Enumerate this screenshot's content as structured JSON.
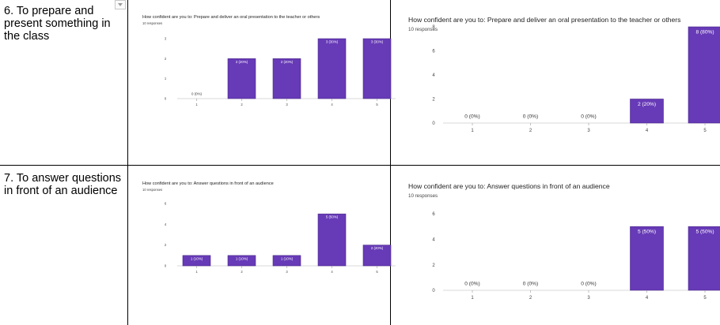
{
  "rows": [
    {
      "label": "6. To prepare and present something in the class",
      "charts": [
        {
          "type": "bar",
          "title": "How confident are you to: Prepare and deliver an oral presentation to the teacher or others",
          "responses": "10 responses",
          "categories": [
            "1",
            "2",
            "3",
            "4",
            "5"
          ],
          "values": [
            0,
            2,
            2,
            3,
            3
          ],
          "data_labels": [
            "0 (0%)",
            "2 (20%)",
            "2 (20%)",
            "3 (30%)",
            "3 (30%)"
          ],
          "yticks": [
            "0",
            "1",
            "2",
            "3"
          ],
          "ylim": [
            0,
            3
          ],
          "bar_color": "#673ab7"
        },
        {
          "type": "bar",
          "title": "How confident are you to:  Prepare and deliver an oral presentation to the teacher or others",
          "responses": "10 responses",
          "categories": [
            "1",
            "2",
            "3",
            "4",
            "5"
          ],
          "values": [
            0,
            0,
            0,
            2,
            8
          ],
          "data_labels": [
            "0 (0%)",
            "0 (0%)",
            "0 (0%)",
            "2 (20%)",
            "8 (80%)"
          ],
          "yticks": [
            "0",
            "2",
            "4",
            "6",
            "8"
          ],
          "ylim": [
            0,
            8
          ],
          "bar_color": "#673ab7"
        }
      ]
    },
    {
      "label": "7. To answer questions in front of an audience",
      "charts": [
        {
          "type": "bar",
          "title": "How confident are you to: Answer questions in front of an audience",
          "responses": "10 responses",
          "categories": [
            "1",
            "2",
            "3",
            "4",
            "5"
          ],
          "values": [
            1,
            1,
            1,
            5,
            2
          ],
          "data_labels": [
            "1 (10%)",
            "1 (10%)",
            "1 (10%)",
            "5 (50%)",
            "2 (20%)"
          ],
          "yticks": [
            "0",
            "2",
            "4",
            "6"
          ],
          "ylim": [
            0,
            6
          ],
          "bar_color": "#673ab7"
        },
        {
          "type": "bar",
          "title": "How confident are you to:  Answer questions in front of an audience",
          "responses": "10 responses",
          "categories": [
            "1",
            "2",
            "3",
            "4",
            "5"
          ],
          "values": [
            0,
            0,
            0,
            5,
            5
          ],
          "data_labels": [
            "0 (0%)",
            "0 (0%)",
            "0 (0%)",
            "5 (50%)",
            "5 (50%)"
          ],
          "yticks": [
            "0",
            "2",
            "4",
            "6"
          ],
          "ylim": [
            0,
            6
          ],
          "bar_color": "#673ab7"
        }
      ]
    }
  ]
}
